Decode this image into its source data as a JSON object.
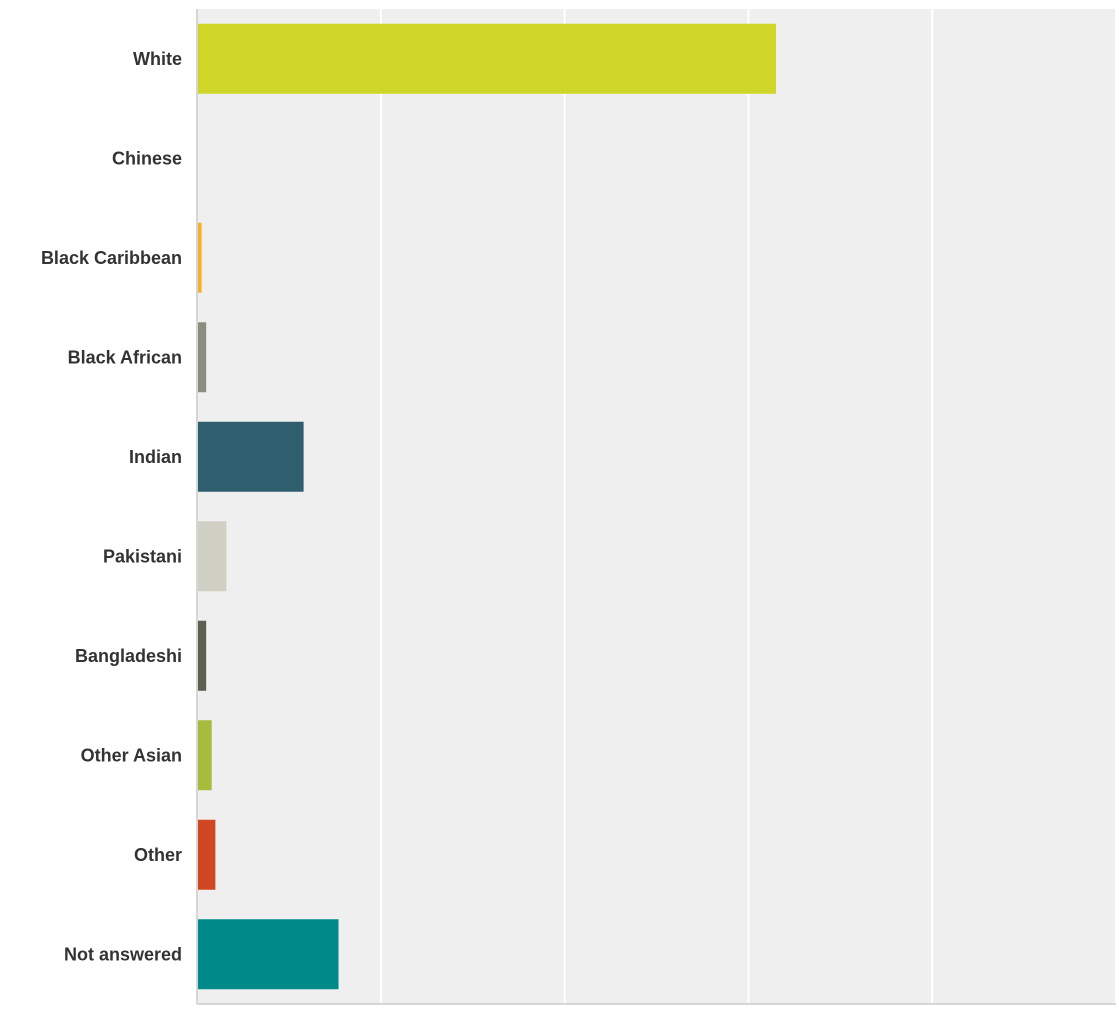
{
  "chart_data": {
    "type": "bar",
    "orientation": "horizontal",
    "categories": [
      "White",
      "Chinese",
      "Black Caribbean",
      "Black African",
      "Indian",
      "Pakistani",
      "Bangladeshi",
      "Other Asian",
      "Other",
      "Not answered"
    ],
    "values": [
      63.0,
      0.0,
      0.5,
      1.0,
      11.6,
      3.2,
      1.0,
      1.6,
      2.0,
      15.4
    ],
    "colors": [
      "#cfd628",
      "#7b8fb0",
      "#f6b128",
      "#8b8d7f",
      "#2f5f6e",
      "#d0d0c4",
      "#5e5f50",
      "#a6bc3d",
      "#d04821",
      "#008b8a"
    ],
    "xlim": [
      0,
      100
    ],
    "xticks": [
      0,
      20,
      40,
      60,
      80,
      100
    ],
    "xtick_labels": [
      "0%",
      "20%",
      "40%",
      "60%",
      "80%",
      "100%"
    ],
    "grid": true,
    "plot_background": "#efefef",
    "gridline_color": "#ffffff"
  }
}
